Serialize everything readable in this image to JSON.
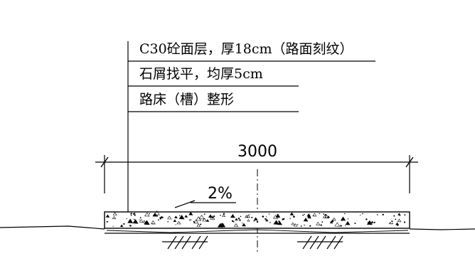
{
  "layers": [
    {
      "text": "C30砼面层，厚18cm（路面刻纹）"
    },
    {
      "text": "石屑找平，均厚5cm"
    },
    {
      "text": "路床（槽）整形"
    }
  ],
  "dimension": {
    "value": "3000"
  },
  "slope": {
    "value": "2%"
  }
}
